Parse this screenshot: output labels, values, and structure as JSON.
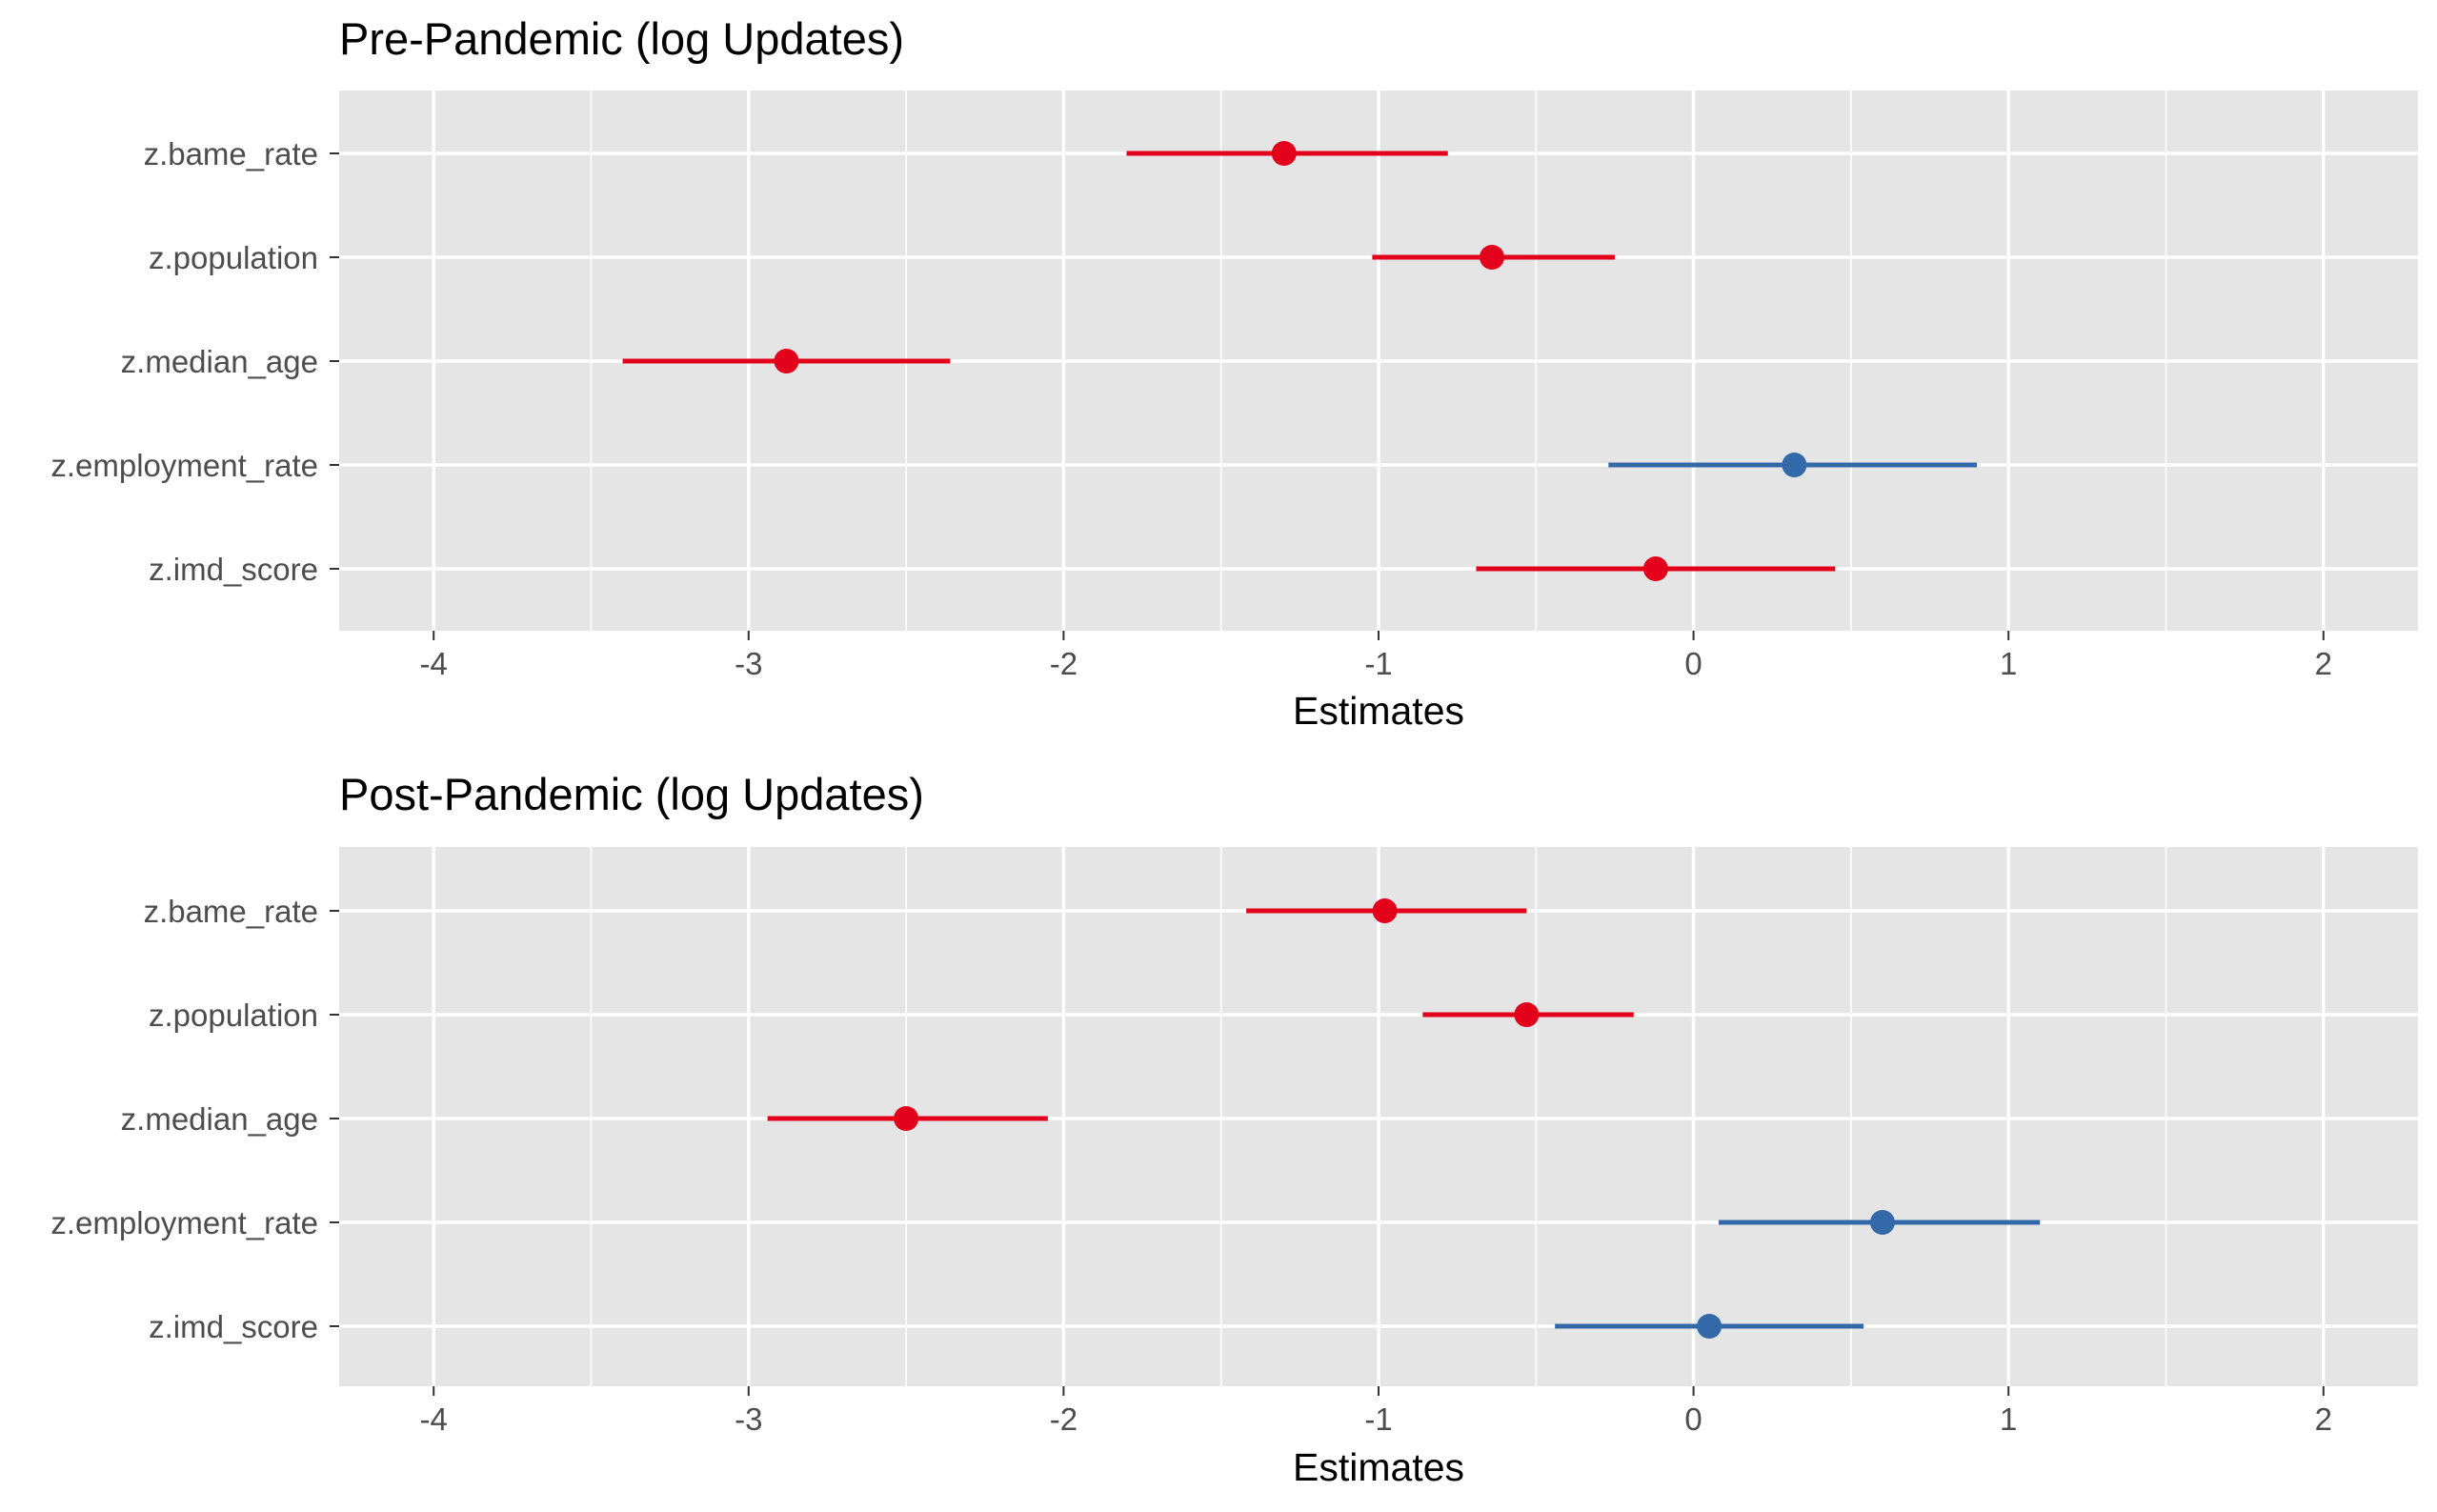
{
  "colors": {
    "negative": "#E3001B",
    "positive": "#3469A9",
    "panel_bg": "#E5E5E5",
    "grid": "#FFFFFF",
    "tick_text": "#4D4D4D"
  },
  "chart_data": [
    {
      "type": "forest",
      "title": "Pre-Pandemic (log Updates)",
      "xlabel": "Estimates",
      "xlim": [
        -4.3,
        2.3
      ],
      "xticks": [
        -4,
        -3,
        -2,
        -1,
        0,
        1,
        2
      ],
      "xtick_labels": [
        "-4",
        "-3",
        "-2",
        "-1",
        "0",
        "1",
        "2"
      ],
      "grid": true,
      "terms": [
        {
          "label": "z.bame_rate",
          "estimate": -1.3,
          "low": -1.8,
          "high": -0.78,
          "sign": "negative"
        },
        {
          "label": "z.population",
          "estimate": -0.64,
          "low": -1.02,
          "high": -0.25,
          "sign": "negative"
        },
        {
          "label": "z.median_age",
          "estimate": -2.88,
          "low": -3.4,
          "high": -2.36,
          "sign": "negative"
        },
        {
          "label": "z.employment_rate",
          "estimate": 0.32,
          "low": -0.27,
          "high": 0.9,
          "sign": "positive"
        },
        {
          "label": "z.imd_score",
          "estimate": -0.12,
          "low": -0.69,
          "high": 0.45,
          "sign": "negative"
        }
      ]
    },
    {
      "type": "forest",
      "title": "Post-Pandemic (log Updates)",
      "xlabel": "Estimates",
      "xlim": [
        -4.3,
        2.3
      ],
      "xticks": [
        -4,
        -3,
        -2,
        -1,
        0,
        1,
        2
      ],
      "xtick_labels": [
        "-4",
        "-3",
        "-2",
        "-1",
        "0",
        "1",
        "2"
      ],
      "grid": true,
      "terms": [
        {
          "label": "z.bame_rate",
          "estimate": -0.98,
          "low": -1.42,
          "high": -0.53,
          "sign": "negative"
        },
        {
          "label": "z.population",
          "estimate": -0.53,
          "low": -0.86,
          "high": -0.19,
          "sign": "negative"
        },
        {
          "label": "z.median_age",
          "estimate": -2.5,
          "low": -2.94,
          "high": -2.05,
          "sign": "negative"
        },
        {
          "label": "z.employment_rate",
          "estimate": 0.6,
          "low": 0.08,
          "high": 1.1,
          "sign": "positive"
        },
        {
          "label": "z.imd_score",
          "estimate": 0.05,
          "low": -0.44,
          "high": 0.54,
          "sign": "positive"
        }
      ]
    }
  ]
}
